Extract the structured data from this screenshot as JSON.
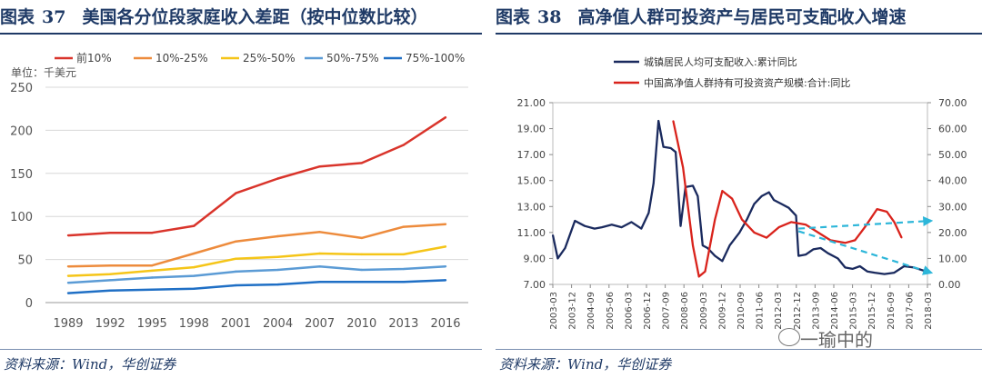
{
  "left_panel": {
    "figure_label": "图表",
    "figure_number": "37",
    "title": "美国各分位段家庭收入差距（按中位数比较）",
    "source": "资料来源：Wind，华创证券"
  },
  "right_panel": {
    "figure_label": "图表",
    "figure_number": "38",
    "title": "高净值人群可投资产与居民可支配收入增速",
    "source": "资料来源：Wind，华创证券"
  },
  "watermark": {
    "text": "一瑜中的",
    "icon": "wechat-icon"
  },
  "chart_data": [
    {
      "type": "line",
      "id": "household-income",
      "title": "美国各分位段家庭收入差距（按中位数比较）",
      "unit_label": "单位：千美元",
      "x": [
        "1989",
        "1992",
        "1995",
        "1998",
        "2001",
        "2004",
        "2007",
        "2010",
        "2013",
        "2016"
      ],
      "ylim": [
        0,
        250
      ],
      "yticks": [
        0,
        50,
        100,
        150,
        200,
        250
      ],
      "grid": true,
      "legend": "top",
      "series": [
        {
          "name": "前10%",
          "color": "#d9342b",
          "values": [
            78,
            81,
            81,
            89,
            127,
            144,
            158,
            162,
            183,
            215
          ]
        },
        {
          "name": "10%-25%",
          "color": "#ed8b3c",
          "values": [
            42,
            43,
            43,
            57,
            71,
            77,
            82,
            75,
            88,
            91
          ]
        },
        {
          "name": "25%-50%",
          "color": "#f5c518",
          "values": [
            31,
            33,
            37,
            41,
            51,
            53,
            57,
            56,
            56,
            65
          ]
        },
        {
          "name": "50%-75%",
          "color": "#5b9bd5",
          "values": [
            23,
            26,
            29,
            31,
            36,
            38,
            42,
            38,
            39,
            42
          ]
        },
        {
          "name": "75%-100%",
          "color": "#1f6fc5",
          "values": [
            11,
            14,
            15,
            16,
            20,
            21,
            24,
            24,
            24,
            26
          ]
        }
      ]
    },
    {
      "type": "line",
      "id": "hnw-vs-income",
      "title": "高净值人群可投资产与居民可支配收入增速",
      "x": [
        "2003-03",
        "2003-12",
        "2004-09",
        "2005-06",
        "2006-03",
        "2006-12",
        "2007-09",
        "2008-06",
        "2009-03",
        "2009-12",
        "2010-09",
        "2011-06",
        "2012-03",
        "2012-12",
        "2013-09",
        "2014-06",
        "2015-03",
        "2015-12",
        "2016-09",
        "2017-06",
        "2018-03"
      ],
      "ylim_left": [
        7,
        21
      ],
      "yticks_left": [
        "7.00",
        "9.00",
        "11.00",
        "13.00",
        "15.00",
        "17.00",
        "19.00",
        "21.00"
      ],
      "ylim_right": [
        0,
        70
      ],
      "yticks_right": [
        "0.00",
        "10.00",
        "20.00",
        "30.00",
        "40.00",
        "50.00",
        "60.00",
        "70.00"
      ],
      "legend": "top",
      "series": [
        {
          "name": "城镇居民人均可支配收入:累计同比",
          "color": "#1a2a5e",
          "axis": "left",
          "points": [
            [
              2003.0,
              10.8
            ],
            [
              2003.2,
              9.0
            ],
            [
              2003.5,
              9.8
            ],
            [
              2003.9,
              11.9
            ],
            [
              2004.3,
              11.5
            ],
            [
              2004.7,
              11.3
            ],
            [
              2005.0,
              11.4
            ],
            [
              2005.4,
              11.6
            ],
            [
              2005.8,
              11.4
            ],
            [
              2006.2,
              11.8
            ],
            [
              2006.6,
              11.3
            ],
            [
              2006.9,
              12.5
            ],
            [
              2007.1,
              14.8
            ],
            [
              2007.3,
              19.6
            ],
            [
              2007.5,
              17.6
            ],
            [
              2007.8,
              17.5
            ],
            [
              2008.0,
              17.2
            ],
            [
              2008.2,
              11.5
            ],
            [
              2008.4,
              14.5
            ],
            [
              2008.7,
              14.6
            ],
            [
              2008.9,
              13.8
            ],
            [
              2009.1,
              10.0
            ],
            [
              2009.3,
              9.8
            ],
            [
              2009.6,
              9.2
            ],
            [
              2009.9,
              8.8
            ],
            [
              2010.2,
              10.0
            ],
            [
              2010.6,
              11.0
            ],
            [
              2010.9,
              12.0
            ],
            [
              2011.2,
              13.2
            ],
            [
              2011.5,
              13.8
            ],
            [
              2011.8,
              14.1
            ],
            [
              2012.0,
              13.5
            ],
            [
              2012.3,
              13.2
            ],
            [
              2012.6,
              12.9
            ],
            [
              2012.9,
              12.3
            ],
            [
              2013.0,
              9.2
            ],
            [
              2013.3,
              9.3
            ],
            [
              2013.6,
              9.7
            ],
            [
              2013.9,
              9.8
            ],
            [
              2014.2,
              9.4
            ],
            [
              2014.6,
              9.0
            ],
            [
              2014.9,
              8.3
            ],
            [
              2015.2,
              8.2
            ],
            [
              2015.5,
              8.4
            ],
            [
              2015.8,
              8.0
            ],
            [
              2016.1,
              7.9
            ],
            [
              2016.5,
              7.8
            ],
            [
              2016.9,
              7.9
            ],
            [
              2017.3,
              8.4
            ],
            [
              2017.7,
              8.3
            ],
            [
              2018.2,
              8.0
            ]
          ]
        },
        {
          "name": "中国高净值人群持有可投资资产规模:合计:同比",
          "color": "#d9231c",
          "axis": "right",
          "points": [
            [
              2007.9,
              63.0
            ],
            [
              2008.3,
              45.0
            ],
            [
              2008.7,
              15.0
            ],
            [
              2008.95,
              3.0
            ],
            [
              2009.2,
              5.0
            ],
            [
              2009.6,
              25.0
            ],
            [
              2009.9,
              36.0
            ],
            [
              2010.3,
              33.0
            ],
            [
              2010.7,
              25.0
            ],
            [
              2011.2,
              20.0
            ],
            [
              2011.7,
              18.0
            ],
            [
              2012.2,
              22.0
            ],
            [
              2012.7,
              24.0
            ],
            [
              2013.3,
              23.0
            ],
            [
              2013.8,
              20.0
            ],
            [
              2014.3,
              17.0
            ],
            [
              2014.9,
              16.0
            ],
            [
              2015.3,
              17.0
            ],
            [
              2015.7,
              22.0
            ],
            [
              2016.2,
              29.0
            ],
            [
              2016.6,
              28.0
            ],
            [
              2016.9,
              24.0
            ],
            [
              2017.2,
              18.0
            ]
          ]
        }
      ],
      "annotations": [
        {
          "type": "trend-arrow",
          "color": "#2db6d9",
          "from": [
            2013.0,
            21.5
          ],
          "to": [
            2018.4,
            24.5
          ],
          "axis": "right"
        },
        {
          "type": "trend-arrow",
          "color": "#2db6d9",
          "from": [
            2013.0,
            11.1
          ],
          "to": [
            2018.4,
            7.9
          ],
          "axis": "left"
        }
      ]
    }
  ]
}
